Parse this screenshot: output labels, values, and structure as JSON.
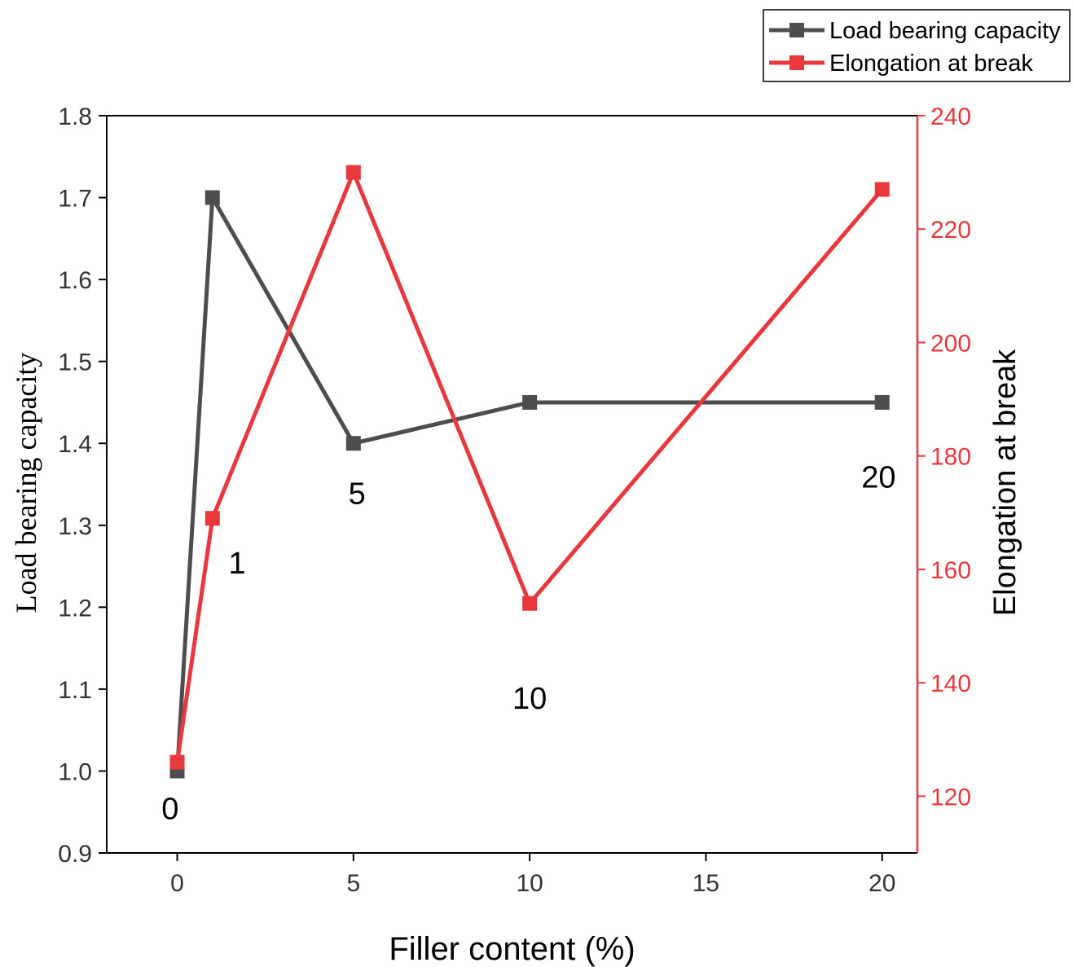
{
  "chart_data": {
    "type": "line",
    "title": "",
    "xlabel": "Filler content (%)",
    "ylabel": "Load bearing capacity",
    "y2label": "Elongation at break",
    "x": [
      0,
      1,
      5,
      10,
      20
    ],
    "xlim": [
      -2,
      21
    ],
    "ylim": [
      0.9,
      1.8
    ],
    "y2lim": [
      110,
      240
    ],
    "x_ticks": [
      0,
      5,
      10,
      15,
      20
    ],
    "x_tick_labels": [
      "0",
      "5",
      "10",
      "15",
      "20"
    ],
    "y_ticks": [
      0.9,
      1.0,
      1.1,
      1.2,
      1.3,
      1.4,
      1.5,
      1.6,
      1.7,
      1.8
    ],
    "y_tick_labels": [
      "0.9",
      "1.0",
      "1.1",
      "1.2",
      "1.3",
      "1.4",
      "1.5",
      "1.6",
      "1.7",
      "1.8"
    ],
    "y2_ticks": [
      120,
      140,
      160,
      180,
      200,
      220,
      240
    ],
    "y2_tick_labels": [
      "120",
      "140",
      "160",
      "180",
      "200",
      "220",
      "240"
    ],
    "series": [
      {
        "name": "Load bearing capacity",
        "axis": "left",
        "color": "#4d4d4d",
        "values": [
          1.0,
          1.7,
          1.4,
          1.45,
          1.45
        ]
      },
      {
        "name": "Elongation at break",
        "axis": "right",
        "color": "#e8383d",
        "values": [
          126,
          169,
          230,
          154,
          227
        ]
      }
    ],
    "annotations": [
      {
        "text": "0",
        "x": -0.2,
        "y": 0.955
      },
      {
        "text": "1",
        "x": 1.7,
        "y": 1.255
      },
      {
        "text": "5",
        "x": 5.1,
        "y": 1.34
      },
      {
        "text": "10",
        "x": 10.0,
        "y": 1.09
      },
      {
        "text": "20",
        "x": 19.9,
        "y": 1.36
      }
    ],
    "legend_position": "top-right, outside plot",
    "grid": false,
    "right_axis_color": "#e8383d",
    "left_axis_color": "#333333"
  }
}
